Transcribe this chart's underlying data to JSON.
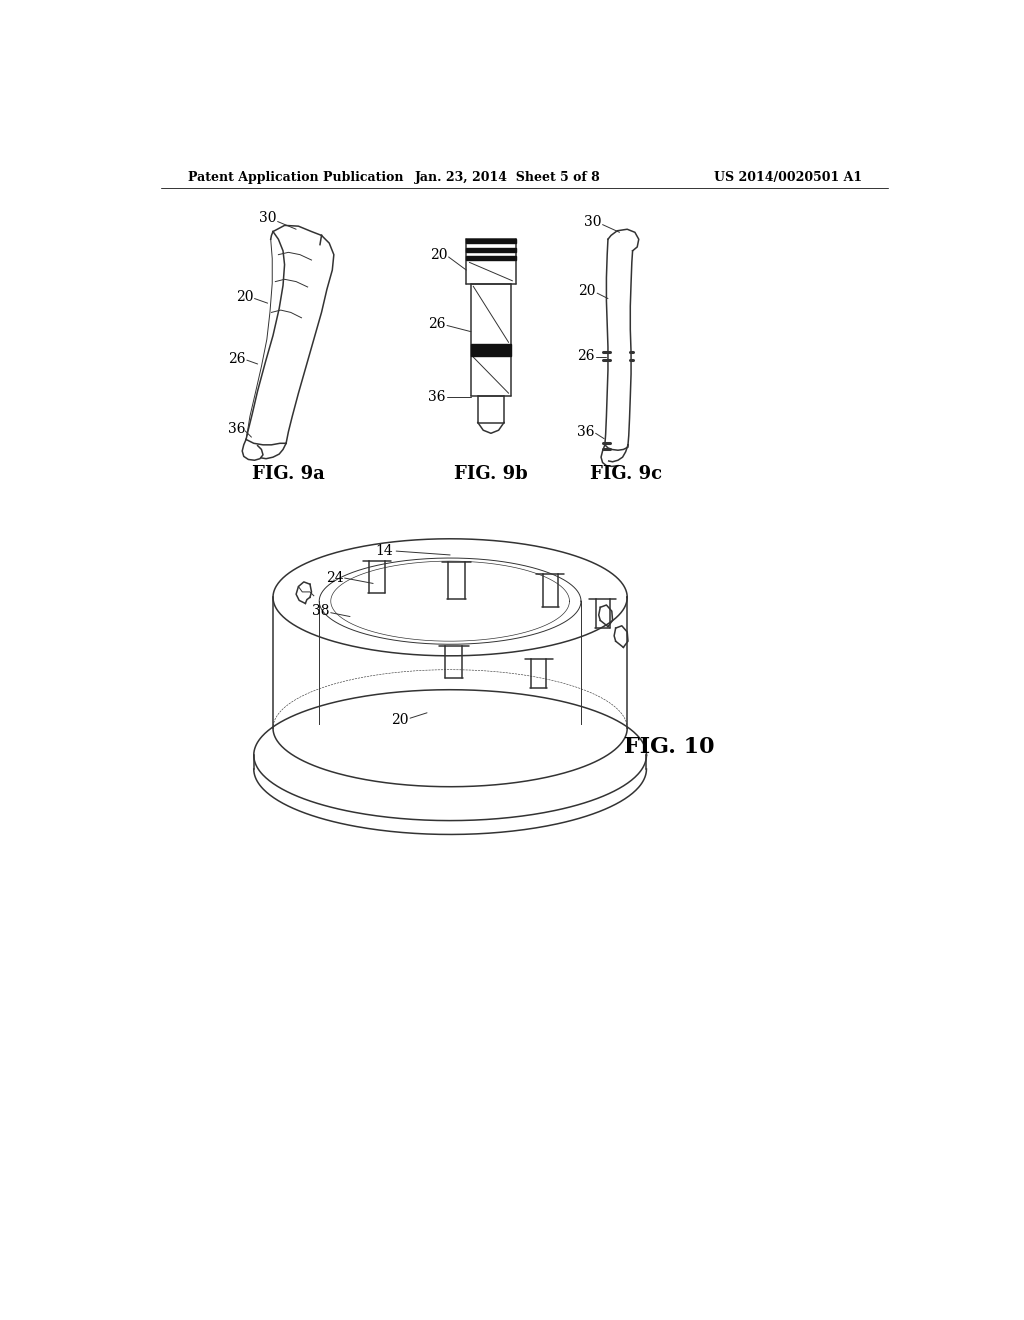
{
  "background_color": "#ffffff",
  "text_color": "#000000",
  "line_color": "#333333",
  "header_left": "Patent Application Publication",
  "header_center": "Jan. 23, 2014  Sheet 5 of 8",
  "header_right": "US 2014/0020501 A1",
  "fig9a_label": "FIG. 9a",
  "fig9b_label": "FIG. 9b",
  "fig9c_label": "FIG. 9c",
  "fig10_label": "FIG. 10",
  "header_font_size": 9,
  "fig_label_font_size": 13,
  "annotation_font_size": 10
}
